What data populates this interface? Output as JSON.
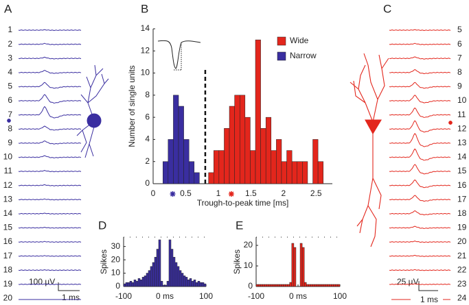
{
  "panel_a": {
    "letter": "A",
    "channels": [
      1,
      2,
      3,
      4,
      5,
      6,
      7,
      8,
      9,
      10,
      11,
      12,
      13,
      14,
      15,
      16,
      17,
      18,
      19,
      20
    ],
    "scale_voltage": "100 µV",
    "scale_time": "1 ms"
  },
  "panel_c": {
    "letter": "C",
    "channels": [
      5,
      6,
      7,
      8,
      9,
      10,
      11,
      12,
      13,
      14,
      15,
      16,
      17,
      18,
      19,
      20,
      21,
      22,
      23,
      24
    ],
    "scale_voltage": "25 µV",
    "scale_time": "1 ms"
  },
  "chart_data": [
    {
      "type": "histogram",
      "panel": "B",
      "xlabel": "Trough-to-peak time [ms]",
      "ylabel": "Number of single units",
      "xlim": [
        0,
        2.75
      ],
      "xticks": [
        0,
        0.5,
        1,
        1.5,
        2,
        2.5
      ],
      "ylim": [
        0,
        14
      ],
      "yticks": [
        0,
        2,
        4,
        6,
        8,
        10,
        12,
        14
      ],
      "legend": "upper right",
      "threshold_line": {
        "x": 0.8,
        "top": 10.3
      },
      "markers": [
        {
          "x": 0.3,
          "color": "#3a2ea0"
        },
        {
          "x": 1.2,
          "color": "#e3261c"
        }
      ],
      "series": [
        {
          "name": "Wide",
          "color": "#e3261c",
          "bins": [
            0.85,
            0.93,
            1.01,
            1.09,
            1.17,
            1.25,
            1.33,
            1.41,
            1.49,
            1.57,
            1.65,
            1.73,
            1.81,
            1.89,
            1.97,
            2.05,
            2.13,
            2.21,
            2.29,
            2.37,
            2.45,
            2.53,
            2.61
          ],
          "values": [
            1,
            3,
            3,
            5,
            7,
            8,
            8,
            6,
            3,
            13,
            5,
            6,
            3,
            4,
            2,
            3,
            2,
            2,
            2,
            0,
            4,
            2
          ]
        },
        {
          "name": "Narrow",
          "color": "#3a2ea0",
          "bins": [
            0.15,
            0.23,
            0.31,
            0.39,
            0.47,
            0.55,
            0.63,
            0.71
          ],
          "values": [
            2,
            4,
            8,
            7,
            4,
            2,
            1
          ]
        }
      ]
    },
    {
      "type": "histogram",
      "panel": "D",
      "ylabel": "Spikes",
      "color": "#3a2ea0",
      "xlim": [
        -100,
        100
      ],
      "xticks": [
        -100,
        {
          "value": 0,
          "label": "0 ms"
        },
        100
      ],
      "ylim": [
        0,
        37
      ],
      "yticks": [
        0,
        10,
        20,
        30
      ],
      "bins": [
        -100,
        -95,
        -90,
        -85,
        -80,
        -75,
        -70,
        -65,
        -60,
        -55,
        -50,
        -45,
        -40,
        -35,
        -30,
        -25,
        -20,
        -15,
        -10,
        -5,
        0,
        5,
        10,
        15,
        20,
        25,
        30,
        35,
        40,
        45,
        50,
        55,
        60,
        65,
        70,
        75,
        80,
        85,
        90,
        95,
        100
      ],
      "values": [
        2,
        3,
        3,
        4,
        3,
        5,
        4,
        6,
        5,
        7,
        8,
        10,
        12,
        15,
        18,
        22,
        28,
        35,
        4,
        1,
        1,
        4,
        35,
        28,
        22,
        18,
        15,
        12,
        10,
        8,
        7,
        5,
        6,
        4,
        5,
        3,
        4,
        3,
        3,
        2
      ]
    },
    {
      "type": "histogram",
      "panel": "E",
      "ylabel": "Spikes",
      "color": "#e3261c",
      "xlim": [
        -100,
        100
      ],
      "xticks": [
        -100,
        {
          "value": 0,
          "label": "0 ms"
        },
        100
      ],
      "ylim": [
        0,
        24
      ],
      "yticks": [
        0,
        10,
        20
      ],
      "bins": [
        -100,
        -95,
        -90,
        -85,
        -80,
        -75,
        -70,
        -65,
        -60,
        -55,
        -50,
        -45,
        -40,
        -35,
        -30,
        -25,
        -20,
        -15,
        -10,
        -5,
        0,
        5,
        10,
        15,
        20,
        25,
        30,
        35,
        40,
        45,
        50,
        55,
        60,
        65,
        70,
        75,
        80,
        85,
        90,
        95,
        100
      ],
      "values": [
        1,
        1,
        1,
        1,
        1,
        1,
        1,
        1,
        1,
        1,
        1,
        1,
        1,
        1,
        1,
        1,
        2,
        21,
        19,
        0,
        0,
        21,
        19,
        2,
        1,
        1,
        1,
        1,
        1,
        1,
        1,
        1,
        1,
        1,
        1,
        1,
        1,
        1,
        1,
        1
      ]
    }
  ]
}
